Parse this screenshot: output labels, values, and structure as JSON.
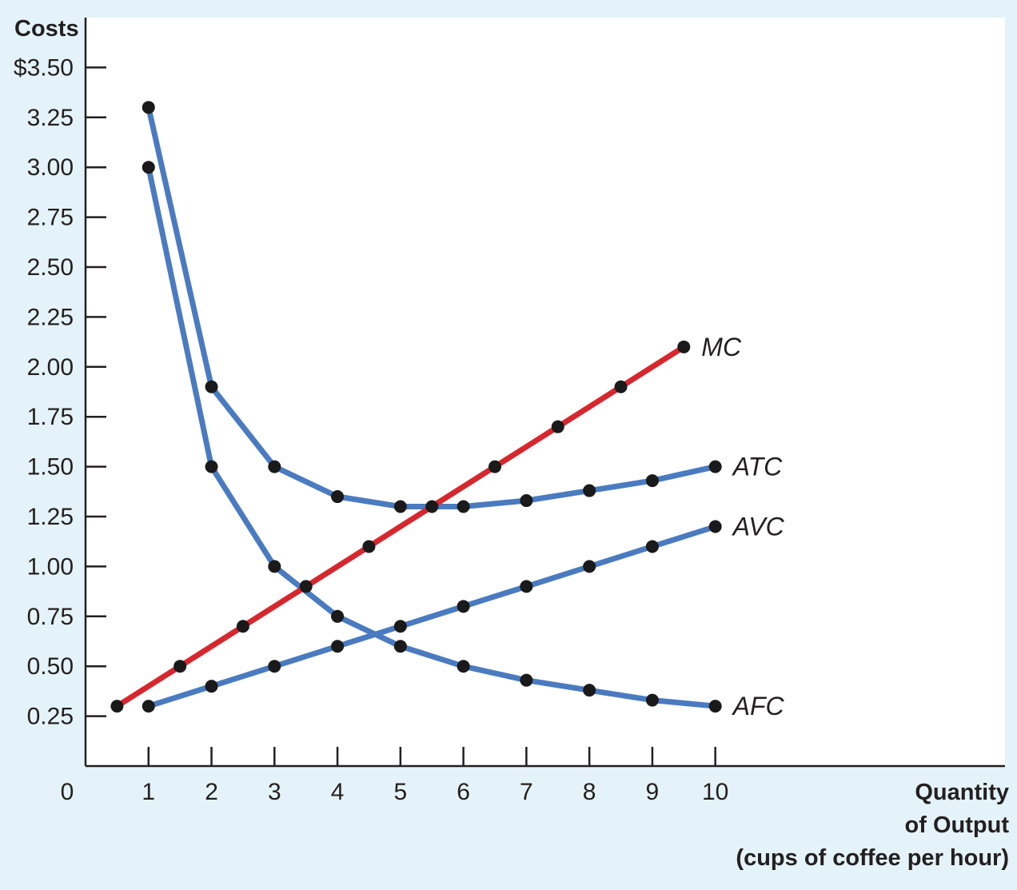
{
  "chart_data": {
    "type": "line",
    "ylabel": "Costs",
    "xlabel_lines": [
      "Quantity",
      "of Output",
      "(cups of coffee per hour)"
    ],
    "xlim": [
      0,
      14.6
    ],
    "ylim": [
      0,
      3.75
    ],
    "x_ticks": [
      1,
      2,
      3,
      4,
      5,
      6,
      7,
      8,
      9,
      10
    ],
    "x_tick_labels": [
      "1",
      "2",
      "3",
      "4",
      "5",
      "6",
      "7",
      "8",
      "9",
      "10"
    ],
    "x_origin_label": "0",
    "y_ticks": [
      0.25,
      0.5,
      0.75,
      1.0,
      1.25,
      1.5,
      1.75,
      2.0,
      2.25,
      2.5,
      2.75,
      3.0,
      3.25,
      3.5
    ],
    "y_tick_labels": [
      "0.25",
      "0.50",
      "0.75",
      "1.00",
      "1.25",
      "1.50",
      "1.75",
      "2.00",
      "2.25",
      "2.50",
      "2.75",
      "3.00",
      "3.25",
      "$3.50"
    ],
    "grid": false,
    "colors": {
      "background": "#e4f3f9",
      "plot_background": "#ffffff",
      "average_curves": "#4a7bc0",
      "marginal_cost": "#d7272e",
      "markers": "#1a1a1a"
    },
    "series": [
      {
        "name": "MC",
        "color": "#d7272e",
        "x": [
          0.5,
          1.5,
          2.5,
          3.5,
          4.5,
          5.5,
          6.5,
          7.5,
          8.5,
          9.5
        ],
        "y": [
          0.3,
          0.5,
          0.7,
          0.9,
          1.1,
          1.3,
          1.5,
          1.7,
          1.9,
          2.1
        ]
      },
      {
        "name": "ATC",
        "color": "#4a7bc0",
        "x": [
          1,
          2,
          3,
          4,
          5,
          6,
          7,
          8,
          9,
          10
        ],
        "y": [
          3.3,
          1.9,
          1.5,
          1.35,
          1.3,
          1.3,
          1.33,
          1.38,
          1.43,
          1.5
        ]
      },
      {
        "name": "AVC",
        "color": "#4a7bc0",
        "x": [
          1,
          2,
          3,
          4,
          5,
          6,
          7,
          8,
          9,
          10
        ],
        "y": [
          0.3,
          0.4,
          0.5,
          0.6,
          0.7,
          0.8,
          0.9,
          1.0,
          1.1,
          1.2
        ]
      },
      {
        "name": "AFC",
        "color": "#4a7bc0",
        "x": [
          1,
          2,
          3,
          4,
          5,
          6,
          7,
          8,
          9,
          10
        ],
        "y": [
          3.0,
          1.5,
          1.0,
          0.75,
          0.6,
          0.5,
          0.43,
          0.38,
          0.33,
          0.3
        ]
      }
    ]
  }
}
